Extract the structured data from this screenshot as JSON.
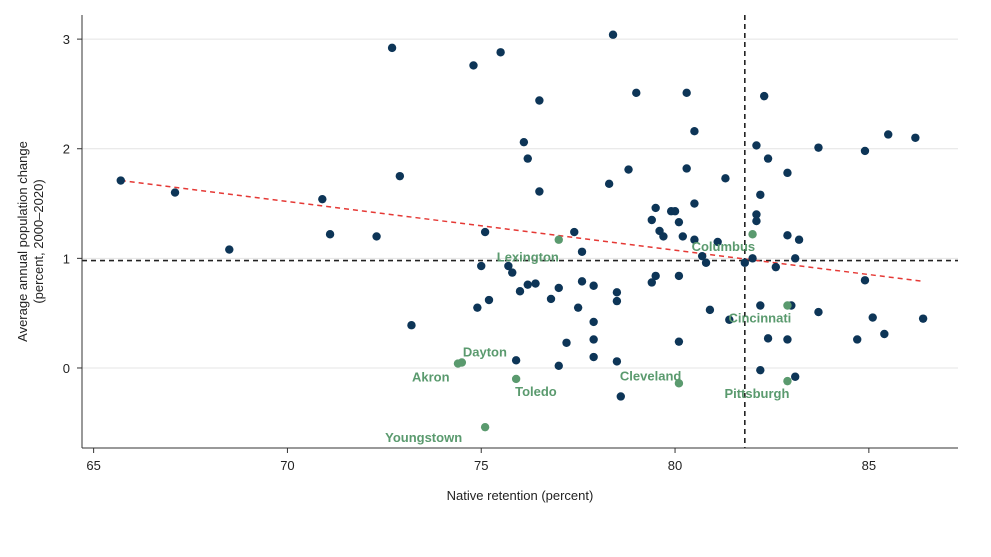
{
  "chart_data": {
    "type": "scatter",
    "xlabel": "Native retention (percent)",
    "ylabel_lines": [
      "Average annual population change",
      "(percent, 2000–2020)"
    ],
    "xlim": [
      64.7,
      87.3
    ],
    "ylim": [
      -0.73,
      3.22
    ],
    "xticks": [
      "65",
      "70",
      "75",
      "80",
      "85"
    ],
    "yticks": [
      "0",
      "1",
      "2",
      "3"
    ],
    "xticks_values": [
      65,
      70,
      75,
      80,
      85
    ],
    "yticks_values": [
      0,
      1,
      2,
      3
    ],
    "grid": "horizontal",
    "reference_lines": {
      "x": 81.8,
      "y": 0.98
    },
    "trend_line": {
      "x": [
        65.7,
        86.4
      ],
      "y": [
        1.71,
        0.79
      ]
    },
    "colors": {
      "other": "#0d3557",
      "highlight": "#5a9a6e",
      "trend": "#e53935",
      "reference": "#222222"
    },
    "highlighted": [
      {
        "label": "Columbus",
        "x": 82.0,
        "y": 1.22
      },
      {
        "label": "Lexington",
        "x": 77.0,
        "y": 1.17
      },
      {
        "label": "Cincinnati",
        "x": 82.9,
        "y": 0.57
      },
      {
        "label": "Dayton",
        "x": 74.5,
        "y": 0.05
      },
      {
        "label": "Akron",
        "x": 74.4,
        "y": 0.04
      },
      {
        "label": "Toledo",
        "x": 75.9,
        "y": -0.1
      },
      {
        "label": "Cleveland",
        "x": 80.1,
        "y": -0.14
      },
      {
        "label": "Pittsburgh",
        "x": 82.9,
        "y": -0.12
      },
      {
        "label": "Youngstown",
        "x": 75.1,
        "y": -0.54
      }
    ],
    "points": [
      {
        "x": 65.7,
        "y": 1.71
      },
      {
        "x": 67.1,
        "y": 1.6
      },
      {
        "x": 68.5,
        "y": 1.08
      },
      {
        "x": 70.9,
        "y": 1.54
      },
      {
        "x": 71.1,
        "y": 1.22
      },
      {
        "x": 72.3,
        "y": 1.2
      },
      {
        "x": 72.7,
        "y": 2.92
      },
      {
        "x": 72.9,
        "y": 1.75
      },
      {
        "x": 73.2,
        "y": 0.39
      },
      {
        "x": 74.8,
        "y": 2.76
      },
      {
        "x": 75.5,
        "y": 2.88
      },
      {
        "x": 76.5,
        "y": 2.44
      },
      {
        "x": 78.4,
        "y": 3.04
      },
      {
        "x": 79.0,
        "y": 2.51
      },
      {
        "x": 80.3,
        "y": 2.51
      },
      {
        "x": 82.3,
        "y": 2.48
      },
      {
        "x": 80.5,
        "y": 2.16
      },
      {
        "x": 76.1,
        "y": 2.06
      },
      {
        "x": 76.2,
        "y": 1.91
      },
      {
        "x": 78.8,
        "y": 1.81
      },
      {
        "x": 80.3,
        "y": 1.82
      },
      {
        "x": 81.3,
        "y": 1.73
      },
      {
        "x": 82.1,
        "y": 2.03
      },
      {
        "x": 82.4,
        "y": 1.91
      },
      {
        "x": 82.9,
        "y": 1.78
      },
      {
        "x": 83.7,
        "y": 2.01
      },
      {
        "x": 84.9,
        "y": 1.98
      },
      {
        "x": 85.5,
        "y": 2.13
      },
      {
        "x": 86.2,
        "y": 2.1
      },
      {
        "x": 76.5,
        "y": 1.61
      },
      {
        "x": 78.3,
        "y": 1.68
      },
      {
        "x": 79.5,
        "y": 1.46
      },
      {
        "x": 79.9,
        "y": 1.43
      },
      {
        "x": 80.0,
        "y": 1.43
      },
      {
        "x": 80.5,
        "y": 1.5
      },
      {
        "x": 82.2,
        "y": 1.58
      },
      {
        "x": 75.1,
        "y": 1.24
      },
      {
        "x": 77.4,
        "y": 1.24
      },
      {
        "x": 79.4,
        "y": 1.35
      },
      {
        "x": 79.6,
        "y": 1.25
      },
      {
        "x": 79.7,
        "y": 1.2
      },
      {
        "x": 80.1,
        "y": 1.33
      },
      {
        "x": 80.2,
        "y": 1.2
      },
      {
        "x": 80.5,
        "y": 1.17
      },
      {
        "x": 81.1,
        "y": 1.15
      },
      {
        "x": 82.1,
        "y": 1.4
      },
      {
        "x": 82.1,
        "y": 1.34
      },
      {
        "x": 82.9,
        "y": 1.21
      },
      {
        "x": 83.2,
        "y": 1.17
      },
      {
        "x": 77.6,
        "y": 1.06
      },
      {
        "x": 80.7,
        "y": 1.02
      },
      {
        "x": 80.8,
        "y": 0.96
      },
      {
        "x": 81.8,
        "y": 0.96
      },
      {
        "x": 82.0,
        "y": 1.0
      },
      {
        "x": 82.6,
        "y": 0.92
      },
      {
        "x": 83.1,
        "y": 1.0
      },
      {
        "x": 75.0,
        "y": 0.93
      },
      {
        "x": 75.7,
        "y": 0.93
      },
      {
        "x": 75.8,
        "y": 0.87
      },
      {
        "x": 76.2,
        "y": 0.76
      },
      {
        "x": 76.4,
        "y": 0.77
      },
      {
        "x": 76.0,
        "y": 0.7
      },
      {
        "x": 77.0,
        "y": 0.73
      },
      {
        "x": 77.6,
        "y": 0.79
      },
      {
        "x": 77.9,
        "y": 0.75
      },
      {
        "x": 78.5,
        "y": 0.69
      },
      {
        "x": 79.4,
        "y": 0.78
      },
      {
        "x": 79.5,
        "y": 0.84
      },
      {
        "x": 80.1,
        "y": 0.84
      },
      {
        "x": 75.2,
        "y": 0.62
      },
      {
        "x": 74.9,
        "y": 0.55
      },
      {
        "x": 76.8,
        "y": 0.63
      },
      {
        "x": 77.5,
        "y": 0.55
      },
      {
        "x": 77.9,
        "y": 0.42
      },
      {
        "x": 78.5,
        "y": 0.61
      },
      {
        "x": 80.9,
        "y": 0.53
      },
      {
        "x": 81.4,
        "y": 0.44
      },
      {
        "x": 82.2,
        "y": 0.57
      },
      {
        "x": 83.0,
        "y": 0.57
      },
      {
        "x": 83.7,
        "y": 0.51
      },
      {
        "x": 84.9,
        "y": 0.8
      },
      {
        "x": 85.1,
        "y": 0.46
      },
      {
        "x": 86.4,
        "y": 0.45
      },
      {
        "x": 77.2,
        "y": 0.23
      },
      {
        "x": 77.9,
        "y": 0.26
      },
      {
        "x": 80.1,
        "y": 0.24
      },
      {
        "x": 82.4,
        "y": 0.27
      },
      {
        "x": 82.9,
        "y": 0.26
      },
      {
        "x": 84.7,
        "y": 0.26
      },
      {
        "x": 85.4,
        "y": 0.31
      },
      {
        "x": 75.9,
        "y": 0.07
      },
      {
        "x": 77.0,
        "y": 0.02
      },
      {
        "x": 77.9,
        "y": 0.1
      },
      {
        "x": 78.5,
        "y": 0.06
      },
      {
        "x": 82.2,
        "y": -0.02
      },
      {
        "x": 83.1,
        "y": -0.08
      },
      {
        "x": 78.6,
        "y": -0.26
      }
    ]
  }
}
